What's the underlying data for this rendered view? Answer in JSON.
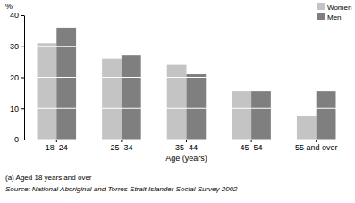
{
  "chart_data": {
    "type": "bar",
    "y_label": "%",
    "x_label": "Age (years)",
    "annotations": [
      "(a) Aged 18 years and over",
      "Source: National Aboriginal and Torres Strait Islander Social Survey 2002"
    ],
    "categories": [
      "18–24",
      "25–34",
      "35–44",
      "45–54",
      "55 and over"
    ],
    "series": [
      {
        "name": "Women",
        "color": "#c4c4c4",
        "values": [
          31,
          26,
          24,
          15.5,
          7.5
        ]
      },
      {
        "name": "Men",
        "color": "#7f7f7f",
        "values": [
          36,
          27,
          21,
          15.5,
          15.5
        ]
      }
    ],
    "ylim": [
      0,
      40
    ],
    "yticks": [
      0,
      10,
      20,
      30,
      40
    ],
    "grid": true,
    "legend": "top-right"
  }
}
